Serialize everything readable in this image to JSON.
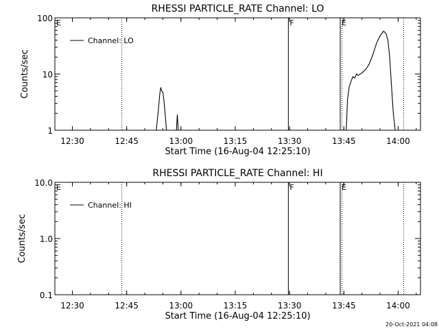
{
  "chart_data": [
    {
      "type": "line",
      "title": "RHESSI PARTICLE_RATE Channel: LO",
      "xlabel": "Start Time (16-Aug-04 12:25:10)",
      "ylabel": "Counts/sec",
      "yscale": "log",
      "ylim": [
        1,
        100
      ],
      "xlim": [
        "12:25:10",
        "14:06:10"
      ],
      "x_ticks": [
        "12:30",
        "12:45",
        "13:00",
        "13:15",
        "13:30",
        "13:45",
        "14:00"
      ],
      "y_ticks": [
        "1",
        "10",
        "100"
      ],
      "legend": {
        "entries": [
          "Channel: LO"
        ],
        "placement": "top-left"
      },
      "markers": [
        {
          "label": "E",
          "time": "12:25:10",
          "style": "none"
        },
        {
          "label": "",
          "time": "12:43:40",
          "style": "dotted"
        },
        {
          "label": "F",
          "time": "13:29:40",
          "style": "solid"
        },
        {
          "label": "E",
          "time": "13:44:00",
          "style": "solid"
        },
        {
          "label": "",
          "time": "13:44:30",
          "style": "dotted"
        },
        {
          "label": "",
          "time": "14:01:30",
          "style": "dotted"
        }
      ],
      "series": [
        {
          "name": "Channel: LO",
          "segments": [
            [
              [
                "12:53:10",
                1.0
              ],
              [
                "12:53:40",
                2.0
              ],
              [
                "12:54:10",
                4.5
              ],
              [
                "12:54:25",
                5.8
              ],
              [
                "12:54:40",
                5.0
              ],
              [
                "12:55:00",
                4.8
              ],
              [
                "12:55:20",
                3.2
              ],
              [
                "12:55:40",
                1.8
              ],
              [
                "12:56:00",
                1.0
              ]
            ],
            [
              [
                "12:58:45",
                1.0
              ],
              [
                "12:59:00",
                1.9
              ],
              [
                "12:59:15",
                1.0
              ]
            ],
            [
              [
                "13:45:40",
                1.0
              ],
              [
                "13:46:00",
                3.5
              ],
              [
                "13:46:30",
                6.0
              ],
              [
                "13:47:00",
                7.5
              ],
              [
                "13:47:30",
                9.0
              ],
              [
                "13:48:00",
                8.5
              ],
              [
                "13:48:30",
                10.0
              ],
              [
                "13:49:00",
                9.5
              ],
              [
                "13:50:00",
                10.5
              ],
              [
                "13:51:00",
                12.0
              ],
              [
                "13:52:00",
                15.0
              ],
              [
                "13:53:00",
                22.0
              ],
              [
                "13:54:00",
                35.0
              ],
              [
                "13:55:00",
                48.0
              ],
              [
                "13:56:00",
                58.0
              ],
              [
                "13:56:40",
                52.0
              ],
              [
                "13:57:10",
                40.0
              ],
              [
                "13:57:40",
                20.0
              ],
              [
                "13:58:10",
                6.0
              ],
              [
                "13:58:40",
                2.0
              ],
              [
                "13:59:10",
                1.0
              ]
            ]
          ]
        }
      ]
    },
    {
      "type": "line",
      "title": "RHESSI PARTICLE_RATE Channel: HI",
      "xlabel": "Start Time (16-Aug-04 12:25:10)",
      "ylabel": "Counts/sec",
      "yscale": "log",
      "ylim": [
        0.1,
        10
      ],
      "xlim": [
        "12:25:10",
        "14:06:10"
      ],
      "x_ticks": [
        "12:30",
        "12:45",
        "13:00",
        "13:15",
        "13:30",
        "13:45",
        "14:00"
      ],
      "y_ticks": [
        "0.1",
        "1.0",
        "10.0"
      ],
      "legend": {
        "entries": [
          "Channel: HI"
        ],
        "placement": "top-left"
      },
      "markers": [
        {
          "label": "E",
          "time": "12:25:10",
          "style": "none"
        },
        {
          "label": "",
          "time": "12:43:40",
          "style": "dotted"
        },
        {
          "label": "F",
          "time": "13:29:40",
          "style": "solid"
        },
        {
          "label": "E",
          "time": "13:44:00",
          "style": "solid"
        },
        {
          "label": "",
          "time": "13:44:30",
          "style": "dotted"
        },
        {
          "label": "",
          "time": "14:01:30",
          "style": "dotted"
        }
      ],
      "series": [
        {
          "name": "Channel: HI",
          "segments": []
        }
      ]
    }
  ],
  "timestamp": "20-Oct-2021 04:08"
}
